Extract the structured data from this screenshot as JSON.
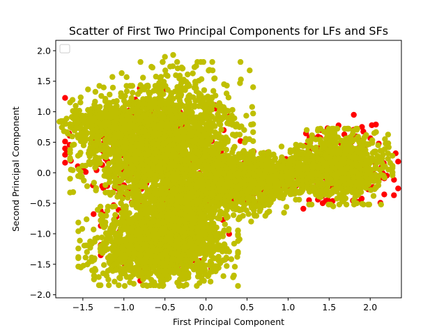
{
  "chart_data": {
    "type": "scatter",
    "title": "Scatter of First Two Principal Components for LFs and SFs",
    "xlabel": "First Principal Component",
    "ylabel": "Second Principal Component",
    "xlim": [
      -1.83,
      2.38
    ],
    "ylim": [
      -2.05,
      2.17
    ],
    "xticks": [
      -1.5,
      -1.0,
      -0.5,
      0.0,
      0.5,
      1.0,
      1.5,
      2.0
    ],
    "xtick_labels": [
      "−1.5",
      "−1.0",
      "−0.5",
      "0.0",
      "0.5",
      "1.0",
      "1.5",
      "2.0"
    ],
    "yticks": [
      -2.0,
      -1.5,
      -1.0,
      -0.5,
      0.0,
      0.5,
      1.0,
      1.5,
      2.0
    ],
    "ytick_labels": [
      "−2.0",
      "−1.5",
      "−1.0",
      "−0.5",
      "0.0",
      "0.5",
      "1.0",
      "1.5",
      "2.0"
    ],
    "grid": false,
    "legend": {
      "placement": "top-left",
      "entries": []
    },
    "series": [
      {
        "color": "#ff0000",
        "clusters": [
          {
            "cx": -0.75,
            "cy": 0.35,
            "sx": 0.42,
            "sy": 0.45,
            "n": 260
          },
          {
            "cx": -0.5,
            "cy": -1.1,
            "sx": 0.34,
            "sy": 0.3,
            "n": 200
          },
          {
            "cx": 0.45,
            "cy": -0.12,
            "sx": 0.4,
            "sy": 0.2,
            "n": 120
          },
          {
            "cx": 1.65,
            "cy": 0.1,
            "sx": 0.3,
            "sy": 0.3,
            "n": 170
          }
        ],
        "highlights": [
          [
            -1.3,
            0.18
          ],
          [
            -0.52,
            1.35
          ],
          [
            0.28,
            0.92
          ],
          [
            1.8,
            0.95
          ],
          [
            2.02,
            0.78
          ],
          [
            1.9,
            0.75
          ],
          [
            1.4,
            0.7
          ],
          [
            1.48,
            0.73
          ],
          [
            0.58,
            0.35
          ],
          [
            0.42,
            0.52
          ],
          [
            -0.8,
            -1.77
          ],
          [
            -1.09,
            -0.72
          ],
          [
            0.75,
            0.33
          ],
          [
            1.85,
            -0.48
          ],
          [
            -1.25,
            -0.25
          ],
          [
            0.36,
            0.12
          ]
        ]
      },
      {
        "color": "#bfbf00",
        "clusters": [
          {
            "cx": -0.85,
            "cy": 0.55,
            "sx": 0.35,
            "sy": 0.38,
            "n": 950
          },
          {
            "cx": -0.3,
            "cy": 0.55,
            "sx": 0.38,
            "sy": 0.55,
            "n": 950
          },
          {
            "cx": -0.35,
            "cy": -0.35,
            "sx": 0.33,
            "sy": 0.55,
            "n": 850
          },
          {
            "cx": -0.75,
            "cy": -1.2,
            "sx": 0.35,
            "sy": 0.28,
            "n": 750
          },
          {
            "cx": -0.3,
            "cy": -1.05,
            "sx": 0.3,
            "sy": 0.35,
            "n": 650
          },
          {
            "cx": 0.35,
            "cy": -0.2,
            "sx": 0.3,
            "sy": 0.22,
            "n": 550
          },
          {
            "cx": 0.9,
            "cy": -0.05,
            "sx": 0.3,
            "sy": 0.17,
            "n": 450
          },
          {
            "cx": 1.65,
            "cy": 0.1,
            "sx": 0.27,
            "sy": 0.27,
            "n": 750
          },
          {
            "cx": -1.35,
            "cy": 0.85,
            "sx": 0.2,
            "sy": 0.14,
            "n": 200
          }
        ],
        "highlights": [
          [
            -1.72,
            0.85
          ],
          [
            -0.5,
            1.9
          ],
          [
            -0.4,
            1.93
          ],
          [
            -1.14,
            1.57
          ],
          [
            0.22,
            1.45
          ],
          [
            0.25,
            1.3
          ],
          [
            0.12,
            -1.53
          ],
          [
            -0.88,
            -1.82
          ],
          [
            -0.35,
            -1.8
          ],
          [
            2.18,
            0.55
          ],
          [
            2.05,
            0.65
          ],
          [
            0.62,
            -0.55
          ],
          [
            -1.73,
            0.68
          ],
          [
            -1.45,
            -1.3
          ],
          [
            0.92,
            0.43
          ],
          [
            1.15,
            0.45
          ],
          [
            0.55,
            -0.8
          ],
          [
            -0.12,
            1.75
          ],
          [
            1.95,
            -0.25
          ],
          [
            1.55,
            -0.55
          ]
        ]
      }
    ]
  }
}
